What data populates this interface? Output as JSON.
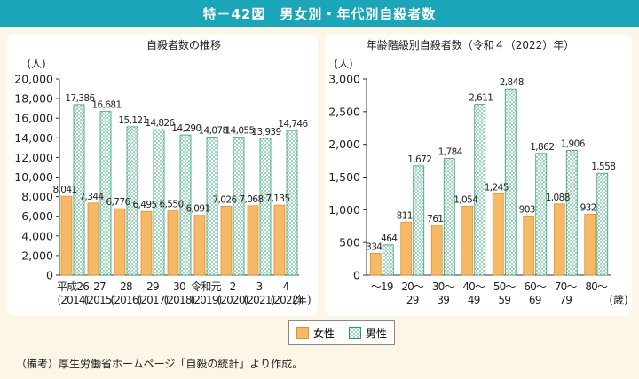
{
  "header": {
    "title": "特－42図　男女別・年代別自殺者数"
  },
  "chart_data": [
    {
      "type": "bar",
      "title": "自殺者数の推移",
      "ylabel": "(人)",
      "xlabel": "(年)",
      "ylim": [
        0,
        20000
      ],
      "yticks": [
        "0",
        "2,000",
        "4,000",
        "6,000",
        "8,000",
        "10,000",
        "12,000",
        "14,000",
        "16,000",
        "18,000",
        "20,000"
      ],
      "categories": [
        {
          "top": "平成26",
          "bottom": "(2014)"
        },
        {
          "top": "27",
          "bottom": "(2015)"
        },
        {
          "top": "28",
          "bottom": "(2016)"
        },
        {
          "top": "29",
          "bottom": "(2017)"
        },
        {
          "top": "30",
          "bottom": "(2018)"
        },
        {
          "top": "令和元",
          "bottom": "(2019)"
        },
        {
          "top": "2",
          "bottom": "(2020)"
        },
        {
          "top": "3",
          "bottom": "(2021)"
        },
        {
          "top": "4",
          "bottom": "(2022)"
        }
      ],
      "series": [
        {
          "name": "女性",
          "values": [
            8041,
            7344,
            6776,
            6495,
            6550,
            6091,
            7026,
            7068,
            7135
          ],
          "labels": [
            "8,041",
            "7,344",
            "6,776",
            "6,495",
            "6,550",
            "6,091",
            "7,026",
            "7,068",
            "7,135"
          ]
        },
        {
          "name": "男性",
          "values": [
            17386,
            16681,
            15121,
            14826,
            14290,
            14078,
            14055,
            13939,
            14746
          ],
          "labels": [
            "17,386",
            "16,681",
            "15,121",
            "14,826",
            "14,290",
            "14,078",
            "14,055",
            "13,939",
            "14,746"
          ]
        }
      ]
    },
    {
      "type": "bar",
      "title": "年齢階級別自殺者数（令和４（2022）年）",
      "ylabel": "(人)",
      "xlabel": "(歳)",
      "ylim": [
        0,
        3000
      ],
      "yticks": [
        "0",
        "500",
        "1,000",
        "1,500",
        "2,000",
        "2,500",
        "3,000"
      ],
      "categories": [
        {
          "top": "～19",
          "bottom": ""
        },
        {
          "top": "20～",
          "bottom": "29"
        },
        {
          "top": "30～",
          "bottom": "39"
        },
        {
          "top": "40～",
          "bottom": "49"
        },
        {
          "top": "50～",
          "bottom": "59"
        },
        {
          "top": "60～",
          "bottom": "69"
        },
        {
          "top": "70～",
          "bottom": "79"
        },
        {
          "top": "80～",
          "bottom": ""
        }
      ],
      "series": [
        {
          "name": "女性",
          "values": [
            334,
            811,
            761,
            1054,
            1245,
            903,
            1088,
            932
          ],
          "labels": [
            "334",
            "811",
            "761",
            "1,054",
            "1,245",
            "903",
            "1,088",
            "932"
          ]
        },
        {
          "name": "男性",
          "values": [
            464,
            1672,
            1784,
            2611,
            2848,
            1862,
            1906,
            1558
          ],
          "labels": [
            "464",
            "1,672",
            "1,784",
            "2,611",
            "2,848",
            "1,862",
            "1,906",
            "1,558"
          ]
        }
      ]
    }
  ],
  "legend": {
    "female": "女性",
    "male": "男性"
  },
  "note": "（備考）厚生労働省ホームページ「自殺の統計」より作成。",
  "colors": {
    "female": "#f5b967",
    "female_stroke": "#e08f30",
    "male_check": "#9bd6bd",
    "male_stroke": "#2f9a72",
    "header": "#1aa5b9"
  }
}
